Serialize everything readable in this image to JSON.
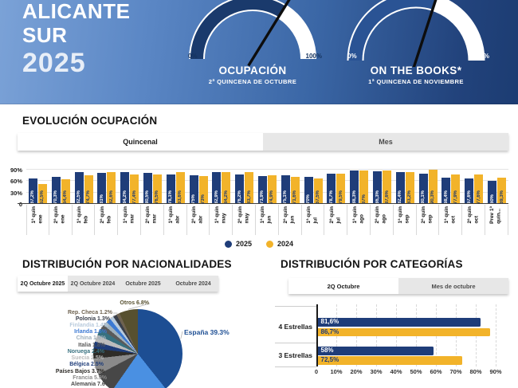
{
  "header": {
    "title_lines": [
      "ALICANTE",
      "SUR",
      "2025"
    ],
    "gauges": [
      {
        "title": "OCUPACIÓN",
        "subtitle": "2ª QUINCENA DE OCTUBRE",
        "min_label": "0%",
        "max_label": "100%",
        "value_pct": 67.6,
        "arc_fill": "#1a3a6c",
        "arc_empty": "#ffffff",
        "tick_color": "#16345f"
      },
      {
        "title": "ON THE BOOKS*",
        "subtitle": "1ª QUINCENA DE NOVIEMBRE",
        "min_label": "0%",
        "max_label": "100%",
        "value_pct": 60,
        "arc_fill": "#2a5394",
        "arc_empty": "#ffffff",
        "tick_color": "#ffffff"
      }
    ]
  },
  "evolution": {
    "title": "EVOLUCIÓN OCUPACIÓN",
    "tabs": [
      {
        "label": "Quincenal",
        "active": true
      },
      {
        "label": "Mes",
        "active": false
      }
    ],
    "legend": [
      {
        "label": "2025",
        "color": "#1f3d79"
      },
      {
        "label": "2024",
        "color": "#f2b32a"
      }
    ],
    "y_tick_labels": [
      "90%",
      "60%",
      "30%",
      "0"
    ]
  },
  "nationalities": {
    "title": "DISTRIBUCIÓN POR NACIONALIDADES",
    "tabs": [
      {
        "label": "2Q Octubre 2025",
        "active": true
      },
      {
        "label": "2Q Octubre 2024",
        "active": false
      },
      {
        "label": "Octubre 2025",
        "active": false
      },
      {
        "label": "Octubre 2024",
        "active": false
      }
    ]
  },
  "categories": {
    "title": "DISTRIBUCIÓN POR CATEGORÍAS",
    "tabs": [
      {
        "label": "2Q Octubre",
        "active": true
      },
      {
        "label": "Mes de octubre",
        "active": false
      }
    ],
    "x_tick_labels": [
      "0",
      "10%",
      "20%",
      "30%",
      "40%",
      "50%",
      "60%",
      "70%",
      "80%",
      "90%"
    ]
  },
  "chart_data": [
    {
      "type": "bar",
      "title": "EVOLUCIÓN OCUPACIÓN",
      "categories": [
        "1ª quin ene",
        "2ª quin ene",
        "1ª quin feb",
        "2ª quin feb",
        "1ª quin mar",
        "2ª quin mar",
        "1ª quin abr",
        "2ª quin abr",
        "1ª quin may",
        "2ª quin may",
        "1ª quin jun",
        "2ª quin jun",
        "1ª quin jul",
        "2ª quin jul",
        "1ª quin ago",
        "2ª quin ago",
        "1ª quin sep",
        "2ª quin sep",
        "1ª quin oct",
        "2ª quin oct",
        "Prev 1ª quin..."
      ],
      "category_label_lines": [
        [
          "1ª quin",
          "ene"
        ],
        [
          "2ª quin",
          "ene"
        ],
        [
          "1ª quin",
          "feb"
        ],
        [
          "2ª quin",
          "feb"
        ],
        [
          "1ª quin",
          "mar"
        ],
        [
          "2ª quin",
          "mar"
        ],
        [
          "1ª quin",
          "abr"
        ],
        [
          "2ª quin",
          "abr"
        ],
        [
          "1ª quin",
          "may"
        ],
        [
          "2ª quin",
          "may"
        ],
        [
          "1ª quin",
          "jun"
        ],
        [
          "2ª quin",
          "jun"
        ],
        [
          "1ª quin",
          "jul"
        ],
        [
          "2ª quin",
          "jul"
        ],
        [
          "1ª quin",
          "ago"
        ],
        [
          "2ª quin",
          "ago"
        ],
        [
          "1ª quin",
          "sep"
        ],
        [
          "2ª quin",
          "sep"
        ],
        [
          "1ª quin",
          "oct"
        ],
        [
          "2ª quin",
          "oct"
        ],
        [
          "Prev 1ª",
          "quin..."
        ]
      ],
      "series": [
        {
          "name": "2025",
          "color": "#1f3d79",
          "values": [
            67.2,
            70.3,
            82.5,
            81,
            84.2,
            80.5,
            78.1,
            75,
            82.9,
            76.2,
            73.9,
            75.1,
            70,
            78.7,
            88.3,
            86.3,
            82.4,
            80.1,
            68.4,
            67.6,
            60
          ]
        },
        {
          "name": "2024",
          "color": "#f2b32a",
          "values": [
            52.5,
            64.4,
            74.7,
            82.6,
            77.4,
            76.5,
            83.6,
            73,
            84.2,
            83.7,
            74.9,
            71.6,
            67.5,
            79.5,
            87,
            87.6,
            83.2,
            90.3,
            77.9,
            77.6,
            69.3
          ]
        }
      ],
      "ylim": [
        0,
        100
      ],
      "y_ticks": [
        90,
        60,
        30,
        0
      ],
      "value_label_format": "comma-decimal-percent",
      "legend_position": "bottom"
    },
    {
      "type": "pie",
      "title": "DISTRIBUCIÓN POR NACIONALIDADES — 2Q Octubre 2025",
      "slices": [
        {
          "label": "España",
          "value": 39.3,
          "color": "#1d4e93",
          "label_visible": true
        },
        {
          "label": "",
          "value": 20.4,
          "color": "#4a90e2",
          "label_visible": false
        },
        {
          "label": "Alemania",
          "value": 7.6,
          "color": "#474747",
          "label_visible": true
        },
        {
          "label": "Francia",
          "value": 5.9,
          "color": "#8a8a8a",
          "label_visible": true
        },
        {
          "label": "Países Bajos",
          "value": 3.7,
          "color": "#2e2c28",
          "label_visible": true
        },
        {
          "label": "Bélgica",
          "value": 2.5,
          "color": "#1f3d79",
          "label_visible": true
        },
        {
          "label": "Suecia",
          "value": 2.5,
          "color": "#bcbcbc",
          "label_visible": true
        },
        {
          "label": "Noruega",
          "value": 2.4,
          "color": "#37707f",
          "label_visible": true
        },
        {
          "label": "Italia",
          "value": 1.8,
          "color": "#5a5a5a",
          "label_visible": true
        },
        {
          "label": "China",
          "value": 1.6,
          "color": "#9fb0bc",
          "label_visible": true
        },
        {
          "label": "Irlanda",
          "value": 1.6,
          "color": "#3b79d3",
          "label_visible": true
        },
        {
          "label": "Finlandia",
          "value": 1.4,
          "color": "#b9cbdd",
          "label_visible": true
        },
        {
          "label": "Polonia",
          "value": 1.3,
          "color": "#3a3f4a",
          "label_visible": true
        },
        {
          "label": "Rep. Checa",
          "value": 1.2,
          "color": "#6e6250",
          "label_visible": true
        },
        {
          "label": "Otros",
          "value": 6.8,
          "color": "#57502f",
          "label_visible": true
        }
      ]
    },
    {
      "type": "bar",
      "orientation": "horizontal",
      "title": "DISTRIBUCIÓN POR CATEGORÍAS — 2Q Octubre",
      "categories": [
        "4 Estrellas",
        "3 Estrellas"
      ],
      "series": [
        {
          "name": "2025",
          "color": "#1f3d79",
          "values": [
            81.6,
            58
          ]
        },
        {
          "name": "2024",
          "color": "#f2b32a",
          "values": [
            86.7,
            72.5
          ]
        }
      ],
      "xlim": [
        0,
        95
      ],
      "x_ticks": [
        0,
        10,
        20,
        30,
        40,
        50,
        60,
        70,
        80,
        90
      ],
      "value_label_format": "comma-decimal-percent"
    }
  ]
}
